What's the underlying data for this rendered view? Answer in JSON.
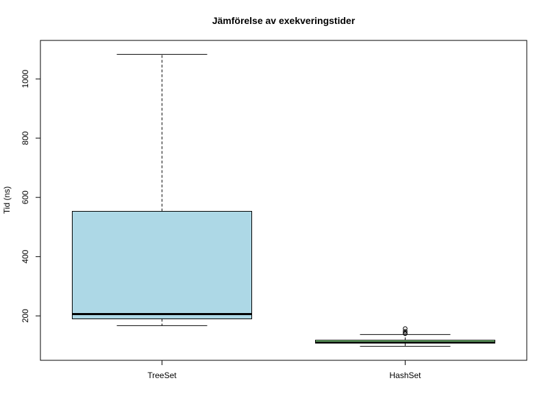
{
  "chart_data": {
    "type": "boxplot",
    "title": "Jämförelse av exekveringstider",
    "xlabel": "",
    "ylabel": "Tid (ns)",
    "ylim": [
      50,
      1130
    ],
    "yticks": [
      200,
      400,
      600,
      800,
      1000
    ],
    "grid": false,
    "legend": "none",
    "categories": [
      "TreeSet",
      "HashSet"
    ],
    "boxes": [
      {
        "category": "TreeSet",
        "color": "#add8e6",
        "whisker_low": 167,
        "q1": 190,
        "median": 206,
        "q3": 553,
        "whisker_high": 1083,
        "outliers": []
      },
      {
        "category": "HashSet",
        "color": "#90ee90",
        "whisker_low": 97,
        "q1": 108,
        "median": 110,
        "q3": 118,
        "whisker_high": 137,
        "outliers": [
          140,
          142,
          148,
          157
        ]
      }
    ]
  }
}
